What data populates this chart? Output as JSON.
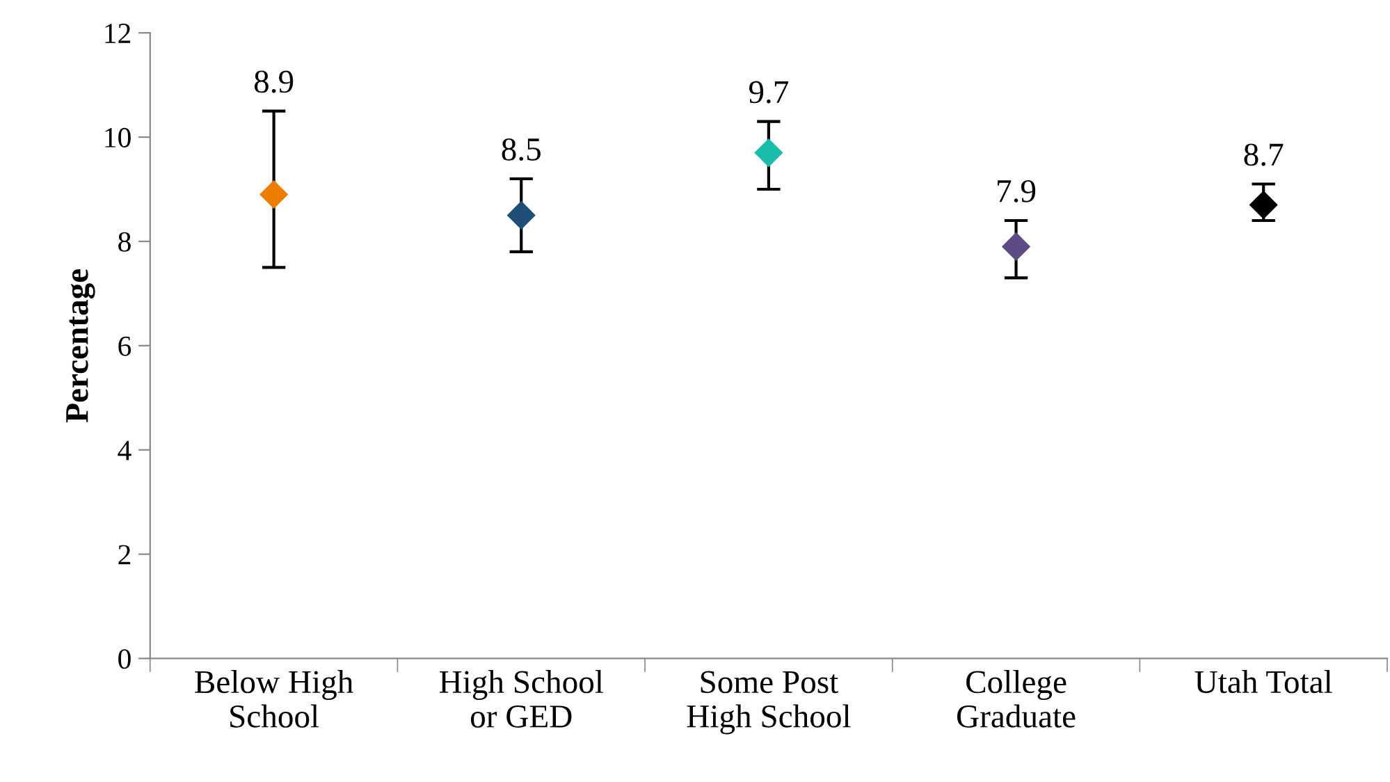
{
  "chart_data": {
    "type": "scatter",
    "ylabel": "Percentage",
    "categories": [
      "Below High\nSchool",
      "High School\nor GED",
      "Some Post\nHigh School",
      "College\nGraduate",
      "Utah Total"
    ],
    "values": [
      8.9,
      8.5,
      9.7,
      7.9,
      8.7
    ],
    "errors": [
      [
        7.5,
        10.5
      ],
      [
        7.8,
        9.2
      ],
      [
        9.0,
        10.3
      ],
      [
        7.3,
        8.4
      ],
      [
        8.4,
        9.1
      ]
    ],
    "colors": [
      "#ed7d00",
      "#1f4e79",
      "#1abcac",
      "#5e4a85",
      "#000000"
    ],
    "marker": "diamond",
    "data_labels": true,
    "grid": false,
    "legend": false,
    "ylim": [
      0,
      12
    ],
    "yticks": [
      0,
      2,
      4,
      6,
      8,
      10,
      12
    ]
  }
}
